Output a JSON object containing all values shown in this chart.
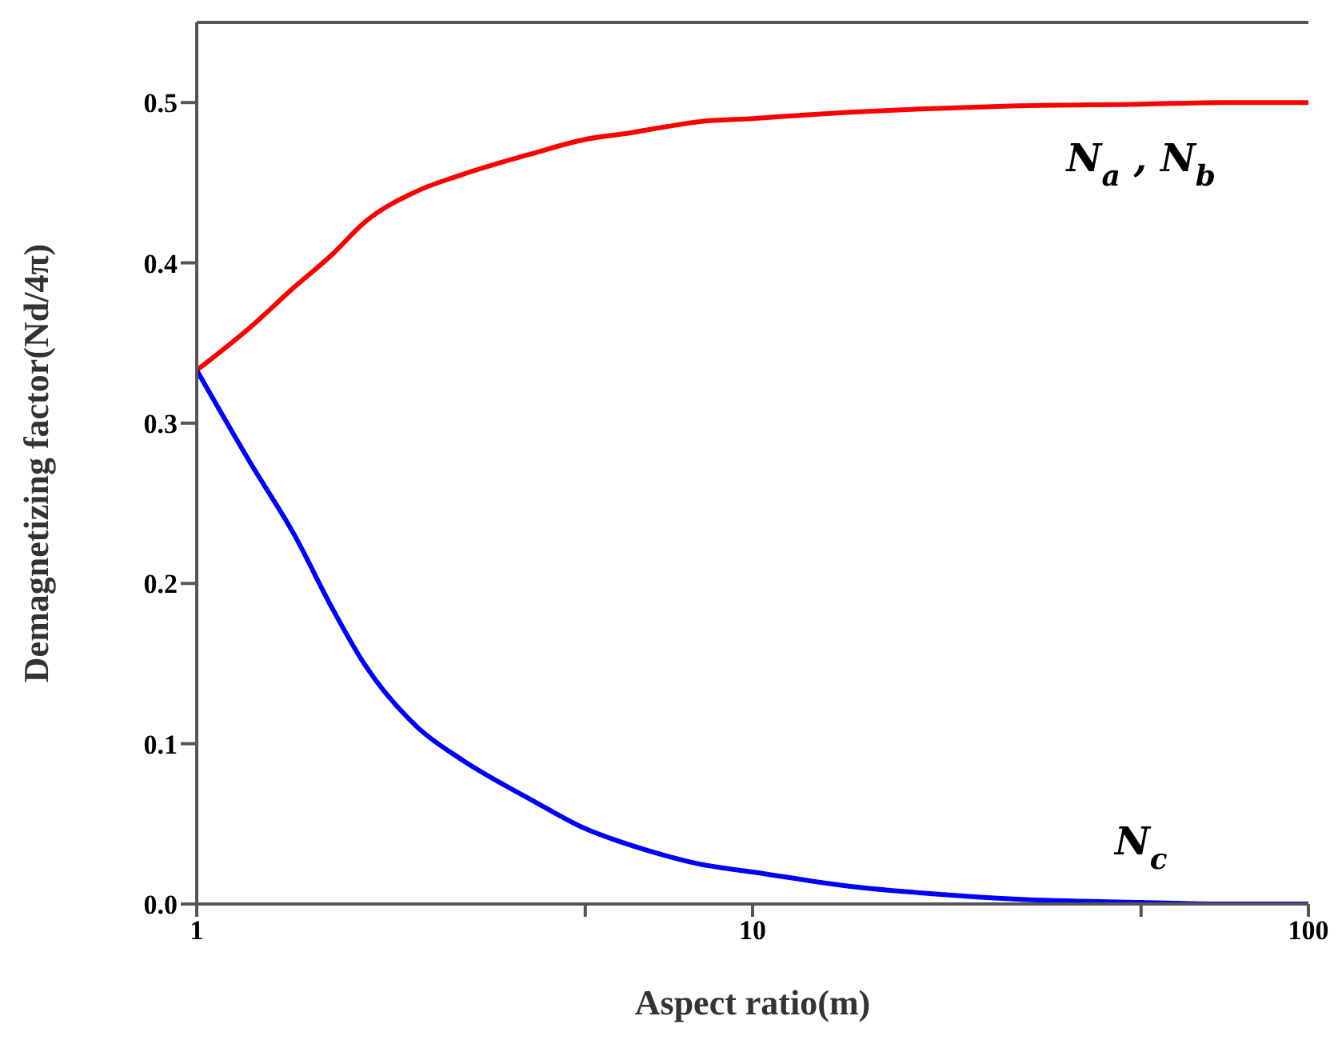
{
  "chart_data": {
    "type": "line",
    "xlabel": "Aspect ratio(m)",
    "ylabel": "Demagnetizing factor(Nd/4π)",
    "x": [
      1,
      1.25,
      1.5,
      1.75,
      2,
      2.5,
      3,
      4,
      5,
      6,
      7,
      8,
      10,
      15,
      20,
      30,
      50,
      70,
      100
    ],
    "series": [
      {
        "name": "N$_{a}$ , N$_{b}$",
        "color": "#ff0000",
        "values": [
          0.333,
          0.36,
          0.385,
          0.405,
          0.425,
          0.445,
          0.455,
          0.468,
          0.477,
          0.481,
          0.485,
          0.488,
          0.49,
          0.494,
          0.496,
          0.498,
          0.499,
          0.5,
          0.5
        ]
      },
      {
        "name": "N$_{c}$",
        "color": "#0000ff",
        "values": [
          0.333,
          0.275,
          0.23,
          0.185,
          0.15,
          0.11,
          0.09,
          0.065,
          0.047,
          0.037,
          0.03,
          0.025,
          0.02,
          0.011,
          0.007,
          0.003,
          0.001,
          0,
          0
        ]
      }
    ],
    "log": "x",
    "xlim": [
      1,
      100
    ],
    "xticks": [
      1,
      {
        "value": 5,
        "label": null
      },
      10,
      {
        "value": 50,
        "label": null
      },
      100
    ],
    "ylim": [
      0,
      0.55
    ],
    "yticks": [
      {
        "value": 0,
        "label": "0.0"
      },
      0.1,
      0.2,
      0.3,
      0.4,
      0.5
    ],
    "grid": false,
    "marker": "none",
    "line_style": "solid"
  }
}
